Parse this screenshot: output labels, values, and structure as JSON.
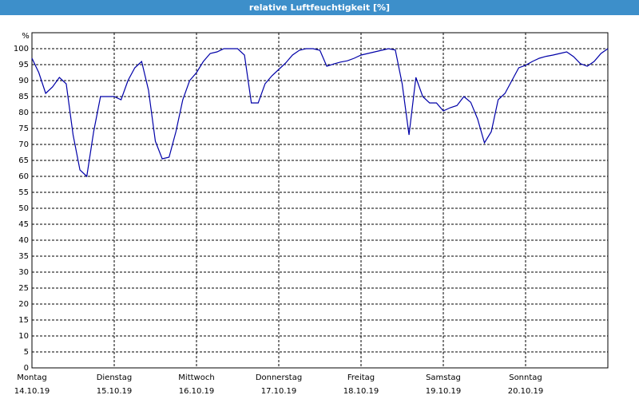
{
  "chart_data": {
    "type": "line",
    "title": "relative Luftfeuchtigkeit [%]",
    "y_label": "%",
    "x": [
      0,
      2,
      4,
      6,
      8,
      10,
      12,
      14,
      16,
      18,
      20,
      22,
      24,
      26,
      28,
      30,
      32,
      34,
      36,
      38,
      40,
      42,
      44,
      46,
      48,
      50,
      52,
      54,
      56,
      58,
      60,
      62,
      64,
      66,
      68,
      70,
      72,
      74,
      76,
      78,
      80,
      82,
      84,
      86,
      88,
      90,
      92,
      94,
      96,
      98,
      100,
      102,
      104,
      106,
      108,
      110,
      112,
      114,
      116,
      118,
      120,
      122,
      124,
      126,
      128,
      130,
      132,
      134,
      136,
      138,
      140,
      142,
      144,
      146,
      148,
      150,
      152,
      154,
      156,
      158,
      160,
      162,
      164,
      166,
      168
    ],
    "series": [
      {
        "name": "relative Luftfeuchtigkeit",
        "color": "#0000a8",
        "values": [
          97,
          92.5,
          86,
          88,
          91,
          89,
          73,
          62,
          60,
          74,
          85,
          85,
          85,
          84,
          90,
          94,
          96,
          87,
          71,
          65.5,
          66,
          74,
          84,
          90,
          92.5,
          96,
          98.5,
          99,
          100,
          100,
          100,
          98,
          83,
          83,
          89,
          91.5,
          93.5,
          95.5,
          98,
          99.5,
          100,
          100,
          99.5,
          94.5,
          95.2,
          95.8,
          96.2,
          97,
          98,
          98.5,
          99,
          99.5,
          100,
          99.6,
          89,
          73,
          91,
          85,
          83,
          83,
          80.5,
          81.5,
          82.2,
          85,
          83.2,
          78,
          70.5,
          74,
          84,
          86,
          90,
          94,
          94.8,
          96,
          97,
          97.6,
          98,
          98.5,
          99,
          97.5,
          95.3,
          94.5,
          96,
          98.5,
          100
        ]
      }
    ],
    "xlim": [
      0,
      168
    ],
    "xticks": [
      {
        "value": 0,
        "label": "Montag",
        "date": "14.10.19"
      },
      {
        "value": 24,
        "label": "Dienstag",
        "date": "15.10.19"
      },
      {
        "value": 48,
        "label": "Mittwoch",
        "date": "16.10.19"
      },
      {
        "value": 72,
        "label": "Donnerstag",
        "date": "17.10.19"
      },
      {
        "value": 96,
        "label": "Freitag",
        "date": "18.10.19"
      },
      {
        "value": 120,
        "label": "Samstag",
        "date": "19.10.19"
      },
      {
        "value": 144,
        "label": "Sonntag",
        "date": "20.10.19"
      }
    ],
    "ylim": [
      0,
      105
    ],
    "yticks": [
      0,
      5,
      10,
      15,
      20,
      25,
      30,
      35,
      40,
      45,
      50,
      55,
      60,
      65,
      70,
      75,
      80,
      85,
      90,
      95,
      100
    ],
    "grid": true
  }
}
